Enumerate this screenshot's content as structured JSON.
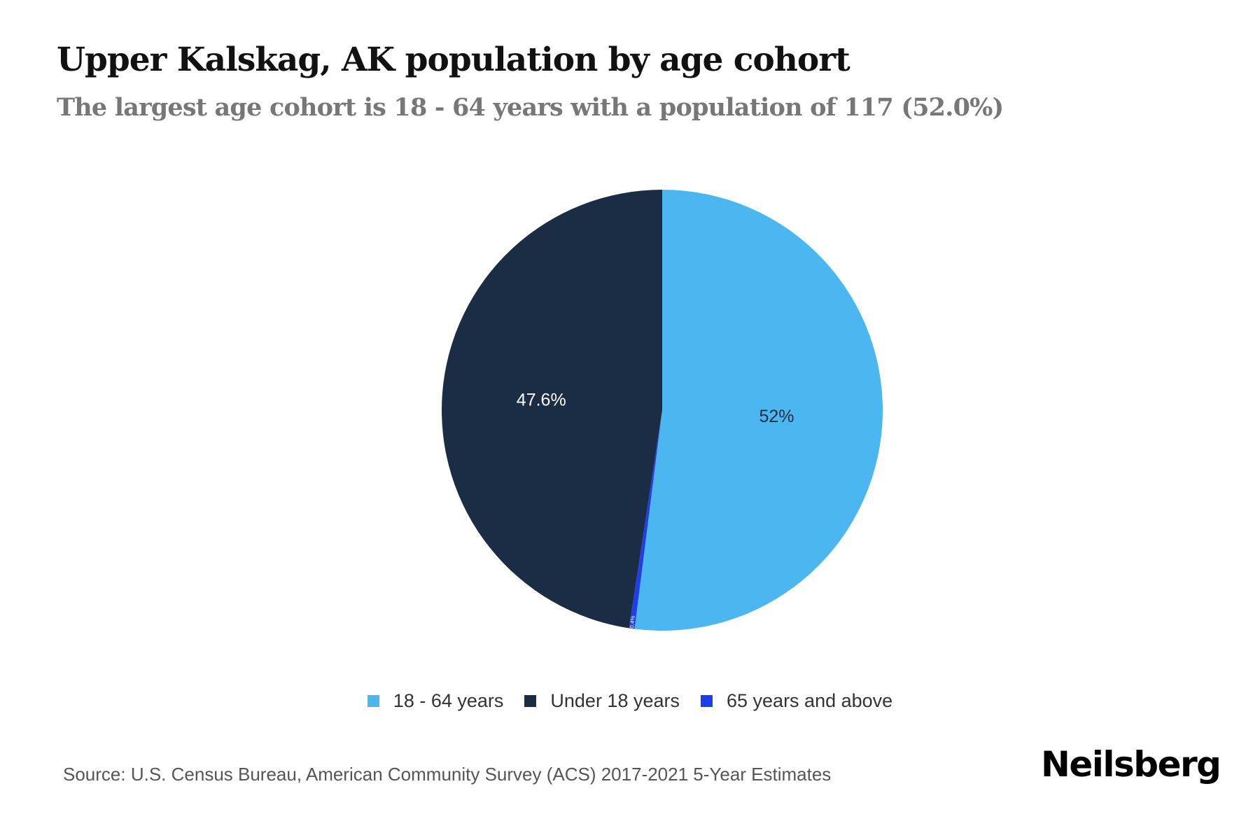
{
  "header": {
    "title": "Upper Kalskag, AK population by age cohort",
    "subtitle": "The largest age cohort is 18 - 64 years with a population of 117 (52.0%)"
  },
  "legend": {
    "items": [
      {
        "label": "18 - 64 years",
        "color": "#4BB6EF"
      },
      {
        "label": "Under 18 years",
        "color": "#1B2C45"
      },
      {
        "label": "65 years and above",
        "color": "#1E3FE8"
      }
    ]
  },
  "footer": {
    "source": "Source: U.S. Census Bureau, American Community Survey (ACS) 2017-2021 5-Year Estimates",
    "brand": "Neilsberg"
  },
  "chart_data": {
    "type": "pie",
    "title": "Upper Kalskag, AK population by age cohort",
    "subtitle": "The largest age cohort is 18 - 64 years with a population of 117 (52.0%)",
    "categories": [
      "18 - 64 years",
      "65 years and above",
      "Under 18 years"
    ],
    "values": [
      52.0,
      0.4,
      47.6
    ],
    "data_labels": [
      "52%",
      "0.4%",
      "47.6%"
    ],
    "colors": [
      "#4BB6EF",
      "#1E3FE8",
      "#1B2C45"
    ],
    "label_colors": [
      "#1B2C45",
      "#ffffff",
      "#ffffff"
    ],
    "start_angle": "top (12 o'clock), clockwise",
    "legend_position": "bottom",
    "legend_order": [
      "18 - 64 years",
      "Under 18 years",
      "65 years and above"
    ],
    "unit": "% of population",
    "source": "U.S. Census Bureau, American Community Survey (ACS) 2017-2021 5-Year Estimates"
  }
}
